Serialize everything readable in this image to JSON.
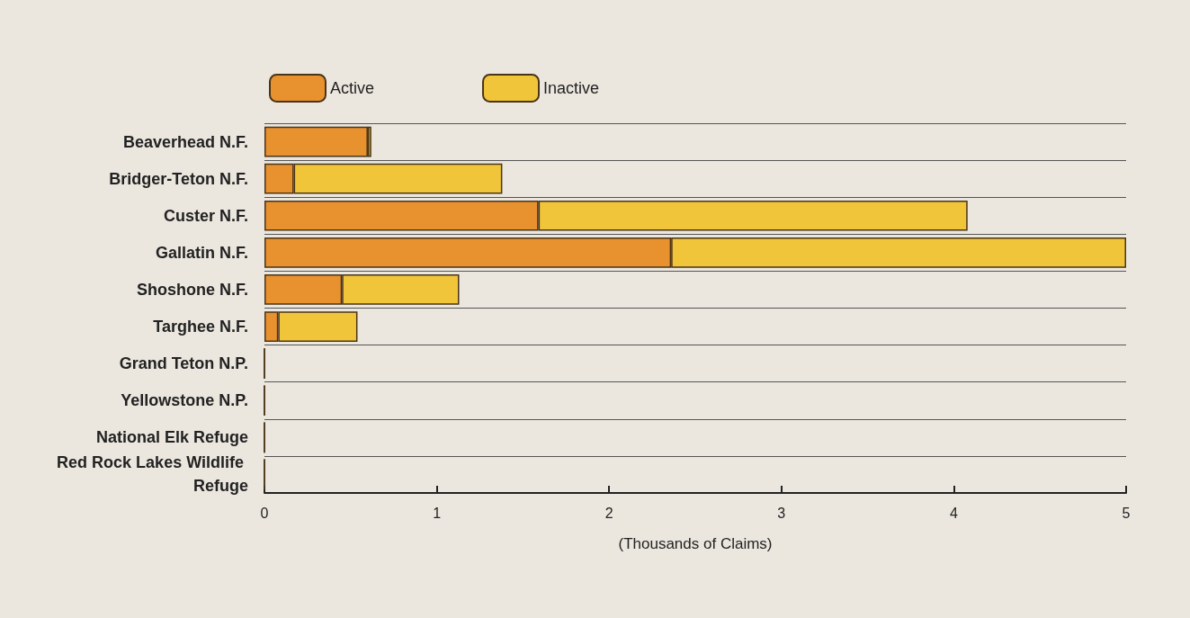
{
  "chart_data": {
    "type": "bar",
    "orientation": "horizontal",
    "stacked": true,
    "categories": [
      "Beaverhead N.F.",
      "Bridger-Teton N.F.",
      "Custer N.F.",
      "Gallatin N.F.",
      "Shoshone N.F.",
      "Targhee N.F.",
      "Grand Teton N.P.",
      "Yellowstone N.P.",
      "National Elk Refuge",
      "Red Rock Lakes Wildlife Refuge"
    ],
    "series": [
      {
        "name": "Active",
        "color": "#e8912f",
        "values": [
          0.6,
          0.17,
          1.59,
          2.36,
          0.45,
          0.08,
          0,
          0,
          0,
          0
        ]
      },
      {
        "name": "Inactive",
        "color": "#f0c53a",
        "values": [
          0.02,
          1.21,
          2.49,
          2.64,
          0.68,
          0.46,
          0,
          0,
          0,
          0
        ]
      }
    ],
    "xlabel": "(Thousands of Claims)",
    "xlim": [
      0,
      5
    ],
    "xticks": [
      0,
      1,
      2,
      3,
      4,
      5
    ],
    "grid": "y",
    "legend": "top left"
  }
}
